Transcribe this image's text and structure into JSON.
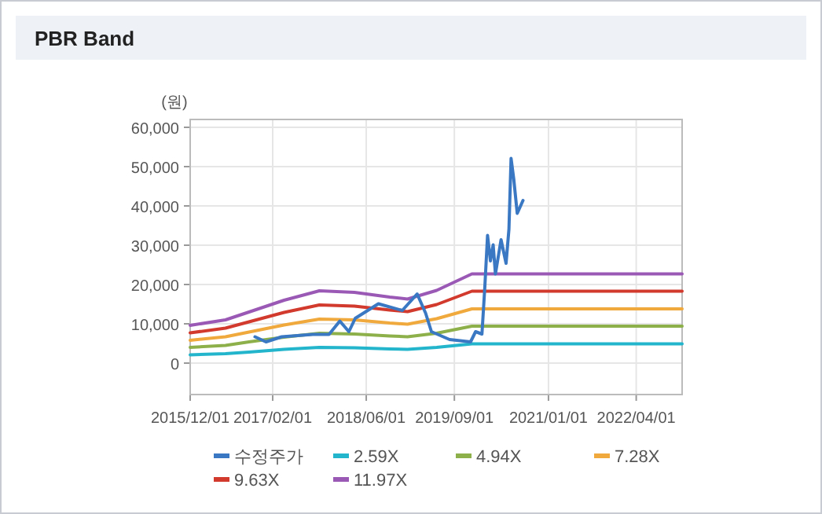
{
  "chart_data": {
    "type": "line",
    "title": "PBR Band",
    "ylabel": "(원)",
    "x": [
      "2015-12-01",
      "2016-06-01",
      "2016-10-01",
      "2017-04-01",
      "2017-10-01",
      "2018-04-01",
      "2018-10-01",
      "2019-01-01",
      "2019-06-01",
      "2019-12-01",
      "2022-11-25"
    ],
    "series": [
      {
        "name": "수정주가",
        "color": "#3a78c3",
        "x": [
          "2016-11-01",
          "2016-12-28",
          "2017-03-20",
          "2017-08-28",
          "2017-11-20",
          "2018-01-15",
          "2018-03-03",
          "2018-04-05",
          "2018-08-03",
          "2018-12-05",
          "2019-02-20",
          "2019-04-05",
          "2019-05-05",
          "2019-08-07",
          "2019-11-24",
          "2019-12-20",
          "2020-01-22",
          "2020-02-06",
          "2020-02-20",
          "2020-03-06",
          "2020-03-20",
          "2020-04-01",
          "2020-04-30",
          "2020-05-26",
          "2020-06-10",
          "2020-06-21",
          "2020-07-05",
          "2020-07-23",
          "2020-08-22"
        ],
        "values": [
          6700,
          5400,
          6700,
          7300,
          7300,
          10700,
          8000,
          11400,
          15100,
          13400,
          17600,
          12700,
          8000,
          6000,
          5400,
          8000,
          7400,
          19400,
          32500,
          26000,
          30100,
          22700,
          31400,
          25400,
          34100,
          52100,
          46800,
          38100,
          41400
        ]
      },
      {
        "name": "2.59X",
        "color": "#22b5cb",
        "values": [
          2100,
          2400,
          2800,
          3500,
          4000,
          3900,
          3600,
          3500,
          4000,
          4900,
          4900
        ]
      },
      {
        "name": "4.94X",
        "color": "#8db04a",
        "values": [
          4000,
          4500,
          5400,
          6600,
          7600,
          7400,
          6900,
          6700,
          7600,
          9400,
          9400
        ]
      },
      {
        "name": "7.28X",
        "color": "#f0a93c",
        "values": [
          5800,
          6700,
          7900,
          9700,
          11200,
          11000,
          10200,
          9900,
          11300,
          13800,
          13800
        ]
      },
      {
        "name": "9.63X",
        "color": "#d23a2e",
        "values": [
          7700,
          8900,
          10500,
          12900,
          14800,
          14500,
          13500,
          13100,
          14900,
          18300,
          18300
        ]
      },
      {
        "name": "11.97X",
        "color": "#9b59b6",
        "values": [
          9600,
          11000,
          13000,
          16000,
          18400,
          18000,
          16800,
          16300,
          18500,
          22700,
          22700
        ]
      }
    ],
    "xlim": [
      "2015-12-01",
      "2022-11-25"
    ],
    "xticks": [
      {
        "value": "2015-12-01",
        "label": "2015/12/01"
      },
      {
        "value": "2017-02-01",
        "label": "2017/02/01"
      },
      {
        "value": "2018-06-01",
        "label": "2018/06/01"
      },
      {
        "value": "2019-09-01",
        "label": "2019/09/01"
      },
      {
        "value": "2021-01-01",
        "label": "2021/01/01"
      },
      {
        "value": "2022-04-01",
        "label": "2022/04/01"
      }
    ],
    "ylim": [
      -8000,
      62000
    ],
    "yticks": [
      0,
      {
        "value": 10000,
        "label": "10,000"
      },
      {
        "value": 20000,
        "label": "20,000"
      },
      {
        "value": 30000,
        "label": "30,000"
      },
      {
        "value": 40000,
        "label": "40,000"
      },
      {
        "value": 50000,
        "label": "50,000"
      },
      {
        "value": 60000,
        "label": "60,000"
      }
    ],
    "grid": true,
    "legend": "bottom"
  }
}
